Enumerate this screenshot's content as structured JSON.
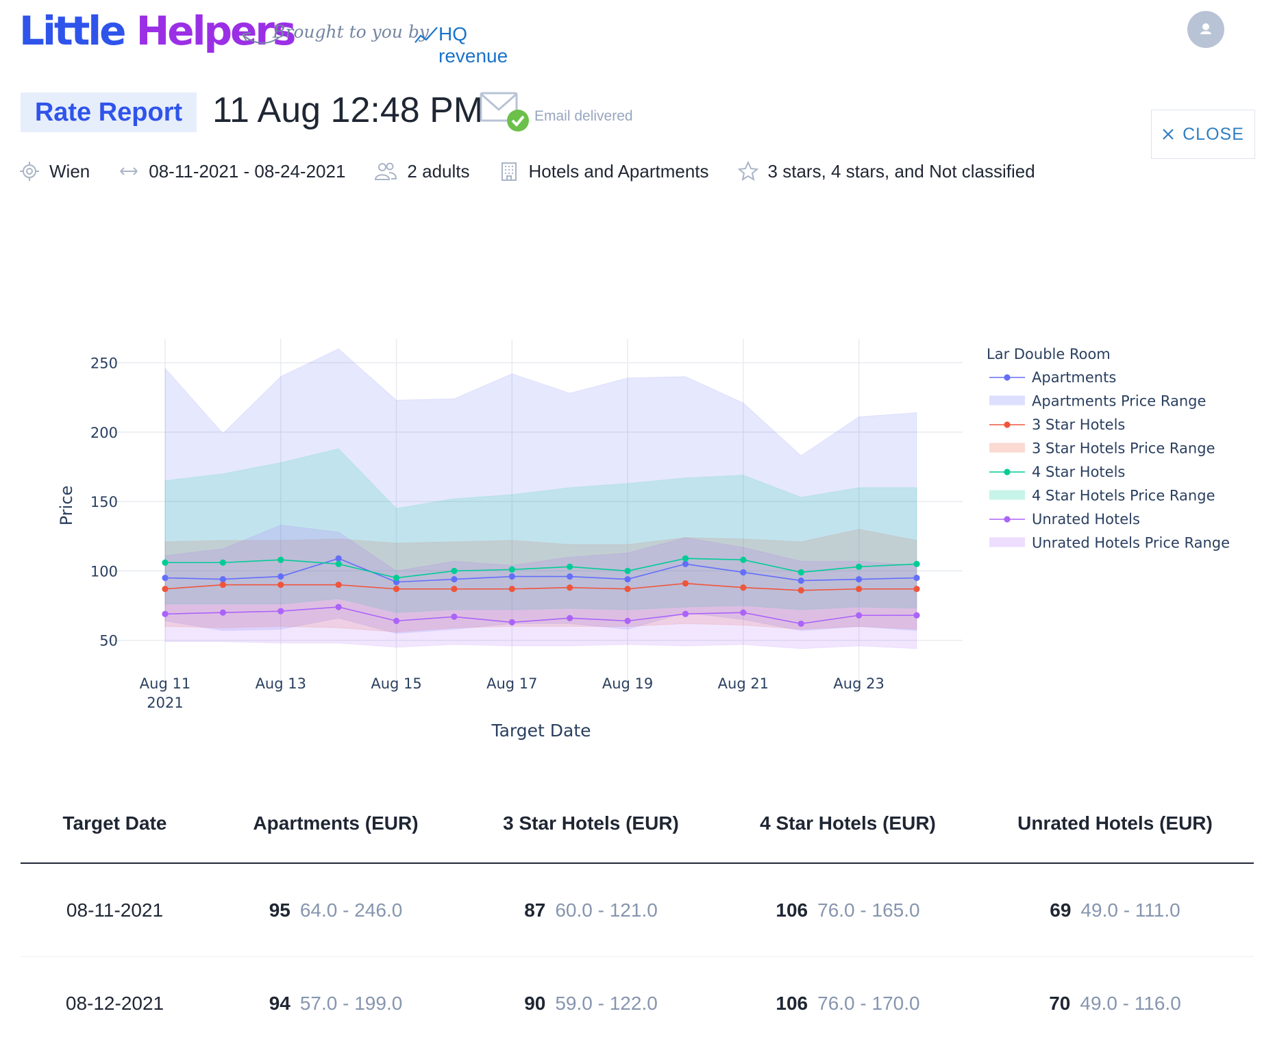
{
  "header": {
    "logo_part1": "Little",
    "logo_part2": "Helpers",
    "brought_by": "Brought to you by",
    "partner": "HQ revenue"
  },
  "report": {
    "badge": "Rate Report",
    "timestamp": "11 Aug 12:48 PM",
    "email_status": "Email delivered",
    "close_label": "CLOSE"
  },
  "filters": {
    "location": "Wien",
    "date_range": "08-11-2021 - 08-24-2021",
    "guests": "2 adults",
    "property_types": "Hotels and Apartments",
    "stars": "3 stars, 4 stars, and Not classified"
  },
  "colors": {
    "brand_blue": "#2f54eb",
    "brand_purple": "#9b2fe6",
    "apartments": "#636efa",
    "three_star": "#ef553b",
    "four_star": "#00cc96",
    "unrated": "#ab63fa"
  },
  "chart_data": {
    "type": "line",
    "xlabel": "Target Date",
    "ylabel": "Price",
    "ylim": [
      40,
      267
    ],
    "yticks": [
      50,
      100,
      150,
      200,
      250
    ],
    "x": [
      "2021-08-11",
      "2021-08-12",
      "2021-08-13",
      "2021-08-14",
      "2021-08-15",
      "2021-08-16",
      "2021-08-17",
      "2021-08-18",
      "2021-08-19",
      "2021-08-20",
      "2021-08-21",
      "2021-08-22",
      "2021-08-23",
      "2021-08-24"
    ],
    "xtick_labels": [
      {
        "index": 0,
        "line1": "Aug 11",
        "line2": "2021"
      },
      {
        "index": 2,
        "line1": "Aug 13",
        "line2": ""
      },
      {
        "index": 4,
        "line1": "Aug 15",
        "line2": ""
      },
      {
        "index": 6,
        "line1": "Aug 17",
        "line2": ""
      },
      {
        "index": 8,
        "line1": "Aug 19",
        "line2": ""
      },
      {
        "index": 10,
        "line1": "Aug 21",
        "line2": ""
      },
      {
        "index": 12,
        "line1": "Aug 23",
        "line2": ""
      }
    ],
    "legend_title": "Lar Double Room",
    "legend_position": "right",
    "series": [
      {
        "name": "Apartments",
        "color": "#636efa",
        "values": [
          95,
          94,
          96,
          109,
          92,
          94,
          96,
          96,
          94,
          105,
          99,
          93,
          94,
          95
        ],
        "range_name": "Apartments Price Range",
        "low": [
          64,
          57,
          58,
          66,
          55,
          58,
          62,
          62,
          58,
          70,
          65,
          57,
          60,
          57
        ],
        "high": [
          246,
          199,
          240,
          260,
          223,
          224,
          242,
          228,
          239,
          240,
          221,
          183,
          211,
          214
        ]
      },
      {
        "name": "3 Star Hotels",
        "color": "#ef553b",
        "values": [
          87,
          90,
          90,
          90,
          87,
          87,
          87,
          88,
          87,
          91,
          88,
          86,
          87,
          87
        ],
        "range_name": "3 Star Hotels Price Range",
        "low": [
          60,
          59,
          60,
          59,
          56,
          59,
          60,
          60,
          60,
          62,
          61,
          58,
          60,
          58
        ],
        "high": [
          121,
          122,
          122,
          123,
          120,
          121,
          122,
          119,
          119,
          124,
          123,
          121,
          130,
          122
        ]
      },
      {
        "name": "4 Star Hotels",
        "color": "#00cc96",
        "values": [
          106,
          106,
          108,
          105,
          95,
          100,
          101,
          103,
          100,
          109,
          108,
          99,
          103,
          105
        ],
        "range_name": "4 Star Hotels Price Range",
        "low": [
          76,
          76,
          76,
          80,
          70,
          72,
          72,
          73,
          72,
          74,
          75,
          72,
          74,
          73
        ],
        "high": [
          165,
          170,
          178,
          188,
          145,
          152,
          155,
          160,
          163,
          167,
          169,
          153,
          160,
          160
        ]
      },
      {
        "name": "Unrated Hotels",
        "color": "#ab63fa",
        "values": [
          69,
          70,
          71,
          74,
          64,
          67,
          63,
          66,
          64,
          69,
          70,
          62,
          68,
          68
        ],
        "range_name": "Unrated Hotels Price Range",
        "low": [
          49,
          49,
          48,
          48,
          45,
          47,
          46,
          46,
          47,
          46,
          47,
          44,
          46,
          44
        ],
        "high": [
          111,
          116,
          133,
          128,
          100,
          107,
          104,
          110,
          113,
          124,
          117,
          107,
          107,
          104
        ]
      }
    ]
  },
  "table": {
    "headers": [
      "Target Date",
      "Apartments (EUR)",
      "3 Star Hotels (EUR)",
      "4 Star Hotels (EUR)",
      "Unrated Hotels (EUR)"
    ],
    "rows": [
      {
        "date": "08-11-2021",
        "apartments": {
          "value": "95",
          "range": "64.0 - 246.0"
        },
        "three_star": {
          "value": "87",
          "range": "60.0 - 121.0"
        },
        "four_star": {
          "value": "106",
          "range": "76.0 - 165.0"
        },
        "unrated": {
          "value": "69",
          "range": "49.0 - 111.0"
        }
      },
      {
        "date": "08-12-2021",
        "apartments": {
          "value": "94",
          "range": "57.0 - 199.0"
        },
        "three_star": {
          "value": "90",
          "range": "59.0 - 122.0"
        },
        "four_star": {
          "value": "106",
          "range": "76.0 - 170.0"
        },
        "unrated": {
          "value": "70",
          "range": "49.0 - 116.0"
        }
      }
    ]
  }
}
